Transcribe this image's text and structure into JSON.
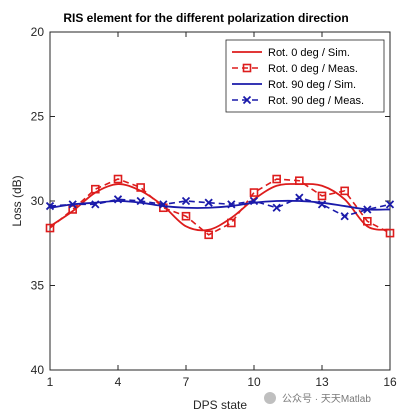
{
  "chart_data": {
    "type": "line",
    "title": "RIS element for the different polarization direction",
    "xlabel": "DPS state",
    "ylabel": "Loss (dB)",
    "xlim": [
      1,
      16
    ],
    "ylim": [
      20,
      40
    ],
    "y_reversed": true,
    "xticks": [
      1,
      4,
      7,
      10,
      13,
      16
    ],
    "yticks": [
      20,
      25,
      30,
      35,
      40
    ],
    "grid": false,
    "legend_position": "top-right",
    "x": [
      1,
      2,
      3,
      4,
      5,
      6,
      7,
      8,
      9,
      10,
      11,
      12,
      13,
      14,
      15,
      16
    ],
    "series": [
      {
        "name": "Rot. 0 deg / Sim.",
        "style": "solid",
        "marker": "none",
        "color": "#dd1c1c",
        "values": [
          31.5,
          30.6,
          29.5,
          29.0,
          29.4,
          30.3,
          31.5,
          31.7,
          31.0,
          29.9,
          29.1,
          29.0,
          29.1,
          29.9,
          31.5,
          31.7
        ]
      },
      {
        "name": "Rot. 0 deg / Meas.",
        "style": "dashed",
        "marker": "square",
        "color": "#dd1c1c",
        "values": [
          31.6,
          30.5,
          29.3,
          28.7,
          29.2,
          30.4,
          30.9,
          32.0,
          31.3,
          29.5,
          28.7,
          28.8,
          29.7,
          29.4,
          31.2,
          31.9
        ]
      },
      {
        "name": "Rot. 90 deg / Sim.",
        "style": "solid",
        "marker": "none",
        "color": "#1a1aaa",
        "values": [
          30.4,
          30.2,
          30.1,
          30.0,
          30.1,
          30.3,
          30.4,
          30.4,
          30.3,
          30.1,
          30.0,
          30.0,
          30.1,
          30.3,
          30.5,
          30.5
        ]
      },
      {
        "name": "Rot. 90 deg / Meas.",
        "style": "dashed",
        "marker": "x",
        "color": "#1a1aaa",
        "values": [
          30.3,
          30.2,
          30.2,
          29.9,
          30.0,
          30.2,
          30.0,
          30.1,
          30.2,
          30.0,
          30.4,
          29.8,
          30.2,
          30.9,
          30.5,
          30.2
        ]
      }
    ]
  },
  "watermark": "公众号 · 天天Matlab"
}
